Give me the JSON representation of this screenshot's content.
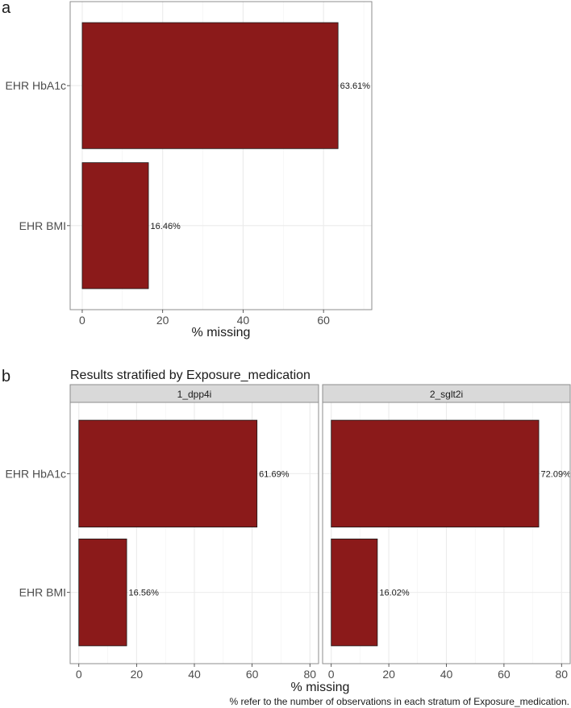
{
  "chart_data": [
    {
      "type": "bar",
      "orientation": "horizontal",
      "panel_label": "a",
      "title": "",
      "categories": [
        "EHR HbA1c",
        "EHR BMI"
      ],
      "values": [
        63.61,
        16.46
      ],
      "value_labels": [
        "63.61%",
        "16.46%"
      ],
      "xlabel": "% missing",
      "ylabel": "",
      "xlim": [
        -3,
        72
      ],
      "xticks": [
        0,
        20,
        40,
        60
      ],
      "grid": true,
      "legend": "none",
      "bar_color": "#8b1a1a"
    },
    {
      "type": "bar",
      "orientation": "horizontal",
      "panel_label": "b",
      "title": "Results stratified by Exposure_medication",
      "categories": [
        "EHR HbA1c",
        "EHR BMI"
      ],
      "facets": [
        {
          "name": "1_dpp4i",
          "values": [
            61.69,
            16.56
          ],
          "value_labels": [
            "61.69%",
            "16.56%"
          ]
        },
        {
          "name": "2_sglt2i",
          "values": [
            72.09,
            16.02
          ],
          "value_labels": [
            "72.09%",
            "16.02%"
          ]
        }
      ],
      "xlabel": "% missing",
      "ylabel": "",
      "xlim": [
        -3,
        83
      ],
      "xticks": [
        0,
        20,
        40,
        60,
        80
      ],
      "grid": true,
      "legend": "none",
      "bar_color": "#8b1a1a",
      "caption": "% refer to the number of observations in each stratum of Exposure_medication."
    }
  ],
  "colors": {
    "bar": "#8b1a1a",
    "bar_stroke": "#1a1a1a",
    "panel_border": "#8c8c8c",
    "grid": "#ebebeb",
    "strip_fill": "#d9d9d9",
    "text": "#1a1a1a",
    "axis_text": "#4d4d4d"
  }
}
